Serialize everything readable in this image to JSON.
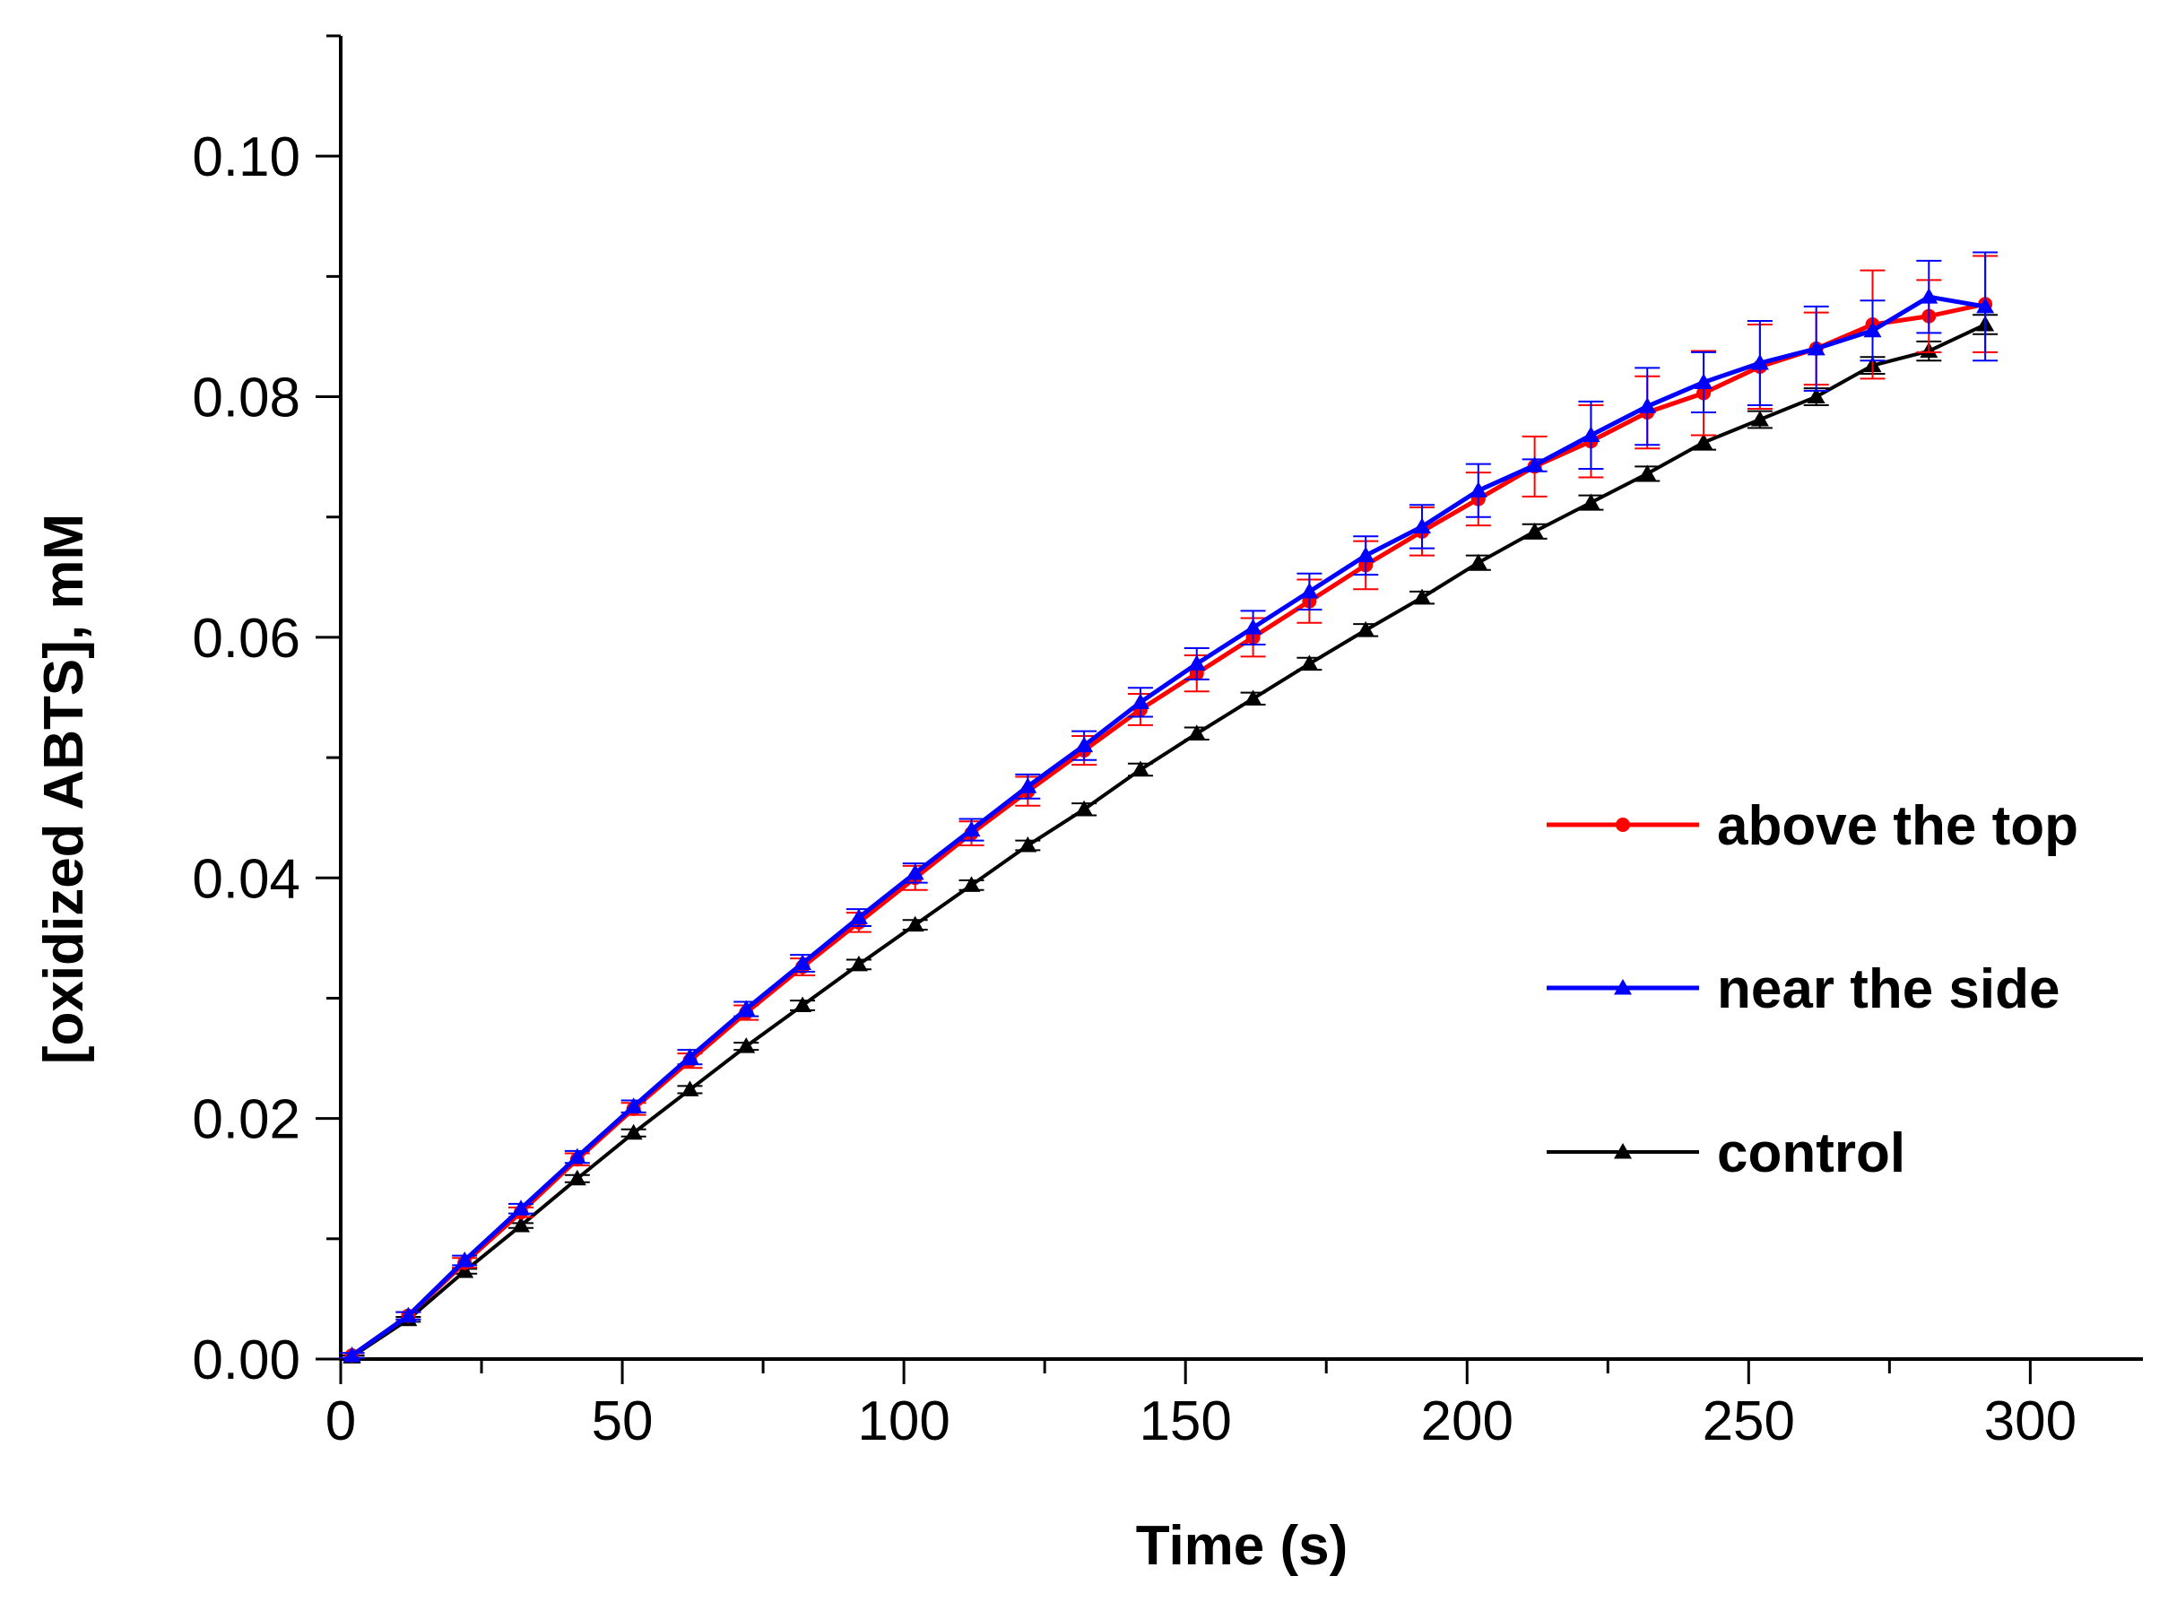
{
  "chart_data": {
    "type": "line",
    "title": "",
    "xlabel": "Time (s)",
    "ylabel": "[oxidized ABTS], mM",
    "xlim": [
      0,
      320
    ],
    "ylim": [
      0,
      0.11
    ],
    "xticks": [
      0,
      50,
      100,
      150,
      200,
      250,
      300
    ],
    "xtick_labels": [
      "0",
      "50",
      "100",
      "150",
      "200",
      "250",
      "300"
    ],
    "yticks": [
      0,
      0.02,
      0.04,
      0.06,
      0.08,
      0.1
    ],
    "ytick_labels": [
      "0.00",
      "0.02",
      "0.04",
      "0.06",
      "0.08",
      "0.10"
    ],
    "legend_position": "right",
    "x": [
      2,
      12,
      22,
      32,
      42,
      52,
      62,
      72,
      82,
      92,
      102,
      112,
      122,
      132,
      142,
      152,
      162,
      172,
      182,
      192,
      202,
      212,
      222,
      232,
      242,
      252,
      262,
      272,
      282,
      292
    ],
    "series": [
      {
        "name": "above the top",
        "color": "#ff0000",
        "marker": "circle",
        "values": [
          0.0003,
          0.0036,
          0.008,
          0.0122,
          0.0166,
          0.0208,
          0.0248,
          0.0288,
          0.0326,
          0.0363,
          0.04,
          0.0437,
          0.0472,
          0.0506,
          0.054,
          0.057,
          0.06,
          0.063,
          0.066,
          0.0688,
          0.0715,
          0.0742,
          0.0763,
          0.0787,
          0.0803,
          0.0825,
          0.084,
          0.086,
          0.0867,
          0.0877
        ],
        "errors": [
          0.0002,
          0.0003,
          0.0004,
          0.0004,
          0.0005,
          0.0005,
          0.0006,
          0.0006,
          0.0007,
          0.0008,
          0.001,
          0.001,
          0.0012,
          0.0012,
          0.0013,
          0.0015,
          0.0016,
          0.0018,
          0.002,
          0.002,
          0.0022,
          0.0025,
          0.003,
          0.003,
          0.0035,
          0.0035,
          0.003,
          0.0045,
          0.003,
          0.004
        ]
      },
      {
        "name": "near the side",
        "color": "#0000ff",
        "marker": "triangle",
        "values": [
          0.0003,
          0.0036,
          0.0082,
          0.0125,
          0.0168,
          0.021,
          0.0251,
          0.0291,
          0.0329,
          0.0367,
          0.0404,
          0.044,
          0.0476,
          0.051,
          0.0546,
          0.0578,
          0.0608,
          0.0638,
          0.0668,
          0.0692,
          0.0722,
          0.0743,
          0.0768,
          0.0792,
          0.0812,
          0.0828,
          0.084,
          0.0855,
          0.0883,
          0.0875
        ],
        "errors": [
          0.0002,
          0.0003,
          0.0004,
          0.0004,
          0.0005,
          0.0005,
          0.0006,
          0.0006,
          0.0007,
          0.0007,
          0.0008,
          0.0009,
          0.001,
          0.0012,
          0.0012,
          0.0013,
          0.0014,
          0.0015,
          0.0016,
          0.0018,
          0.0022,
          0.0005,
          0.0028,
          0.0032,
          0.0025,
          0.0035,
          0.0035,
          0.0025,
          0.003,
          0.0045
        ]
      },
      {
        "name": "control",
        "color": "#000000",
        "marker": "triangle",
        "values": [
          0.0002,
          0.0033,
          0.0073,
          0.0111,
          0.015,
          0.0188,
          0.0224,
          0.026,
          0.0294,
          0.0328,
          0.0361,
          0.0394,
          0.0427,
          0.0457,
          0.049,
          0.052,
          0.0549,
          0.0578,
          0.0606,
          0.0633,
          0.0662,
          0.0688,
          0.0712,
          0.0736,
          0.0762,
          0.0781,
          0.08,
          0.0826,
          0.0838,
          0.086
        ],
        "errors": [
          0.0001,
          0.0002,
          0.0002,
          0.0002,
          0.0003,
          0.0003,
          0.0003,
          0.0003,
          0.0004,
          0.0004,
          0.0004,
          0.0004,
          0.0004,
          0.0005,
          0.0005,
          0.0005,
          0.0005,
          0.0005,
          0.0005,
          0.0005,
          0.0006,
          0.0006,
          0.0006,
          0.0006,
          0.0006,
          0.0007,
          0.0007,
          0.0007,
          0.0008,
          0.0008
        ]
      }
    ]
  }
}
